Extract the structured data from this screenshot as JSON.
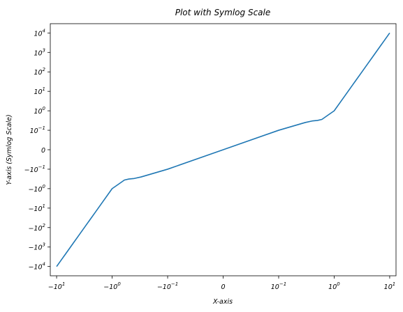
{
  "chart_data": {
    "type": "line",
    "title": "Plot with Symlog Scale",
    "xlabel": "X-axis",
    "ylabel": "Y-axis (Symlog Scale)",
    "xscale": "symlog",
    "yscale": "symlog",
    "linthresh_x": 0.1,
    "linthresh_y": 0.1,
    "xlim": [
      -13,
      13
    ],
    "ylim": [
      -30000,
      30000
    ],
    "grid": false,
    "legend": "none",
    "line_color": "#1f77b4",
    "x_ticks": [
      {
        "value": -10,
        "base": "−10",
        "exp": "1"
      },
      {
        "value": -1,
        "base": "−10",
        "exp": "0"
      },
      {
        "value": -0.1,
        "base": "−10",
        "exp": "−1"
      },
      {
        "value": 0,
        "base": "0",
        "exp": ""
      },
      {
        "value": 0.1,
        "base": "10",
        "exp": "−1"
      },
      {
        "value": 1,
        "base": "10",
        "exp": "0"
      },
      {
        "value": 10,
        "base": "10",
        "exp": "1"
      }
    ],
    "y_ticks": [
      {
        "value": 10000,
        "base": "10",
        "exp": "4"
      },
      {
        "value": 1000,
        "base": "10",
        "exp": "3"
      },
      {
        "value": 100,
        "base": "10",
        "exp": "2"
      },
      {
        "value": 10,
        "base": "10",
        "exp": "1"
      },
      {
        "value": 1,
        "base": "10",
        "exp": "0"
      },
      {
        "value": 0.1,
        "base": "10",
        "exp": "−1"
      },
      {
        "value": 0,
        "base": "0",
        "exp": ""
      },
      {
        "value": -0.1,
        "base": "−10",
        "exp": "−1"
      },
      {
        "value": -1,
        "base": "−10",
        "exp": "0"
      },
      {
        "value": -10,
        "base": "−10",
        "exp": "1"
      },
      {
        "value": -100,
        "base": "−10",
        "exp": "2"
      },
      {
        "value": -1000,
        "base": "−10",
        "exp": "3"
      },
      {
        "value": -10000,
        "base": "−10",
        "exp": "4"
      }
    ],
    "series": [
      {
        "x": [
          -10,
          -9,
          -8,
          -7,
          -6,
          -5,
          -4,
          -3,
          -2.5,
          -2,
          -1.5,
          -1,
          -0.8,
          -0.6,
          -0.5,
          -0.4,
          -0.3,
          -0.1,
          0,
          0.1,
          0.3,
          0.4,
          0.5,
          0.6,
          0.8,
          1,
          1.5,
          2,
          2.5,
          3,
          4,
          5,
          6,
          7,
          8,
          9,
          10
        ],
        "y": [
          -10000,
          -6561,
          -4096,
          -2401,
          -1296,
          -625,
          -256,
          -81,
          -39.06,
          -16,
          -5.06,
          -1,
          -0.64,
          -0.36,
          -0.32,
          -0.3,
          -0.25,
          -0.1,
          0,
          0.1,
          0.25,
          0.3,
          0.32,
          0.36,
          0.64,
          1,
          5.06,
          16,
          39.06,
          81,
          256,
          625,
          1296,
          2401,
          4096,
          6561,
          10000
        ]
      }
    ]
  }
}
